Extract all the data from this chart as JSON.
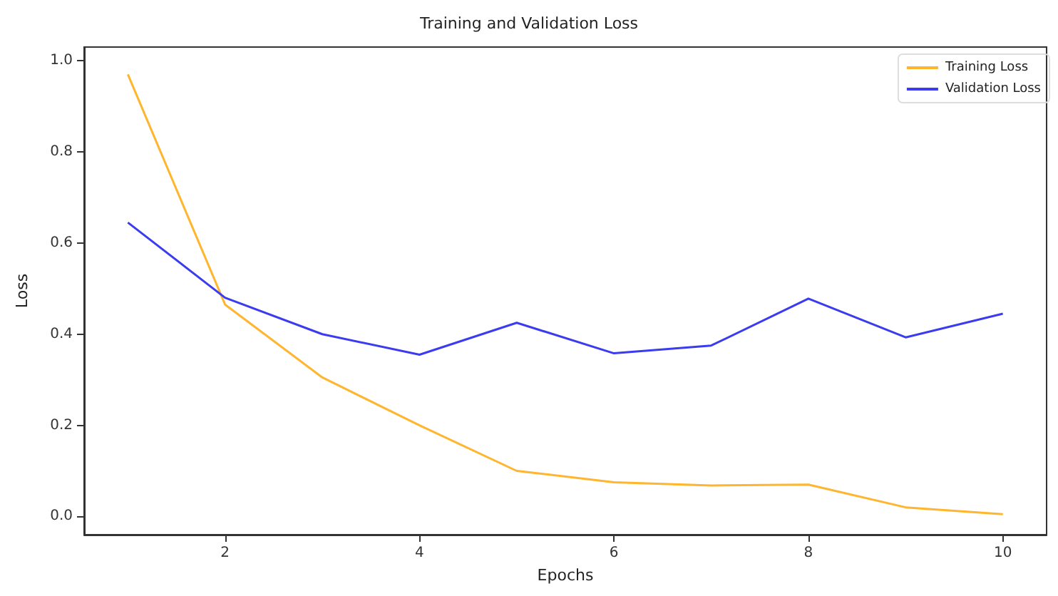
{
  "chart_data": {
    "type": "line",
    "title": "Training and Validation Loss",
    "xlabel": "Epochs",
    "ylabel": "Loss",
    "x": [
      1,
      2,
      3,
      4,
      5,
      6,
      7,
      8,
      9,
      10
    ],
    "series": [
      {
        "name": "Training Loss",
        "color": "#ffb52e",
        "values": [
          0.97,
          0.465,
          0.305,
          0.2,
          0.1,
          0.075,
          0.068,
          0.07,
          0.02,
          0.005
        ]
      },
      {
        "name": "Validation Loss",
        "color": "#3b3bf0",
        "values": [
          0.645,
          0.48,
          0.4,
          0.355,
          0.425,
          0.358,
          0.375,
          0.478,
          0.393,
          0.445
        ]
      }
    ],
    "xlim": [
      0.55,
      10.45
    ],
    "xticks": [
      2,
      4,
      6,
      8,
      10
    ],
    "ylim": [
      -0.04,
      1.03
    ],
    "yticks": [
      {
        "value": 0,
        "label": "0.0"
      },
      {
        "value": 0.2,
        "label": "0.2"
      },
      {
        "value": 0.4,
        "label": "0.4"
      },
      {
        "value": 0.6,
        "label": "0.6"
      },
      {
        "value": 0.8,
        "label": "0.8"
      },
      {
        "value": 1,
        "label": "1.0"
      }
    ],
    "grid": false,
    "legend": "top right",
    "marker": "none",
    "line_style": "solid"
  }
}
